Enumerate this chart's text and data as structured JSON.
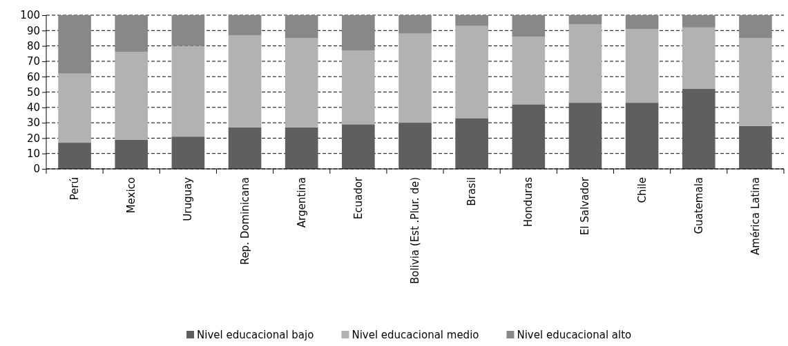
{
  "chart_data": {
    "type": "bar",
    "stacked": true,
    "categories": [
      "Perú",
      "Mexico",
      "Uruguay",
      "Rep. Dominicana",
      "Argentina",
      "Ecuador",
      "Bolivia (Est .Plur. de)",
      "Brasil",
      "Honduras",
      "El Salvador",
      "Chile",
      "Guatemala",
      "América Latina"
    ],
    "series": [
      {
        "name": "Nivel educacional bajo",
        "color": "#5f5f5f",
        "values": [
          17,
          19,
          21,
          27,
          27,
          29,
          30,
          33,
          42,
          43,
          43,
          52,
          28
        ]
      },
      {
        "name": "Nivel educacional medio",
        "color": "#b2b2b2",
        "values": [
          45,
          57,
          59,
          60,
          58,
          48,
          58,
          60,
          44,
          51,
          48,
          40,
          57
        ]
      },
      {
        "name": "Nivel educacional alto",
        "color": "#888888",
        "values": [
          38,
          24,
          20,
          13,
          15,
          23,
          12,
          7,
          14,
          6,
          9,
          8,
          15
        ]
      }
    ],
    "ylim": [
      0,
      100
    ],
    "yticks": [
      0,
      10,
      20,
      30,
      40,
      50,
      60,
      70,
      80,
      90,
      100
    ],
    "grid": "y",
    "legend": "bottom"
  }
}
